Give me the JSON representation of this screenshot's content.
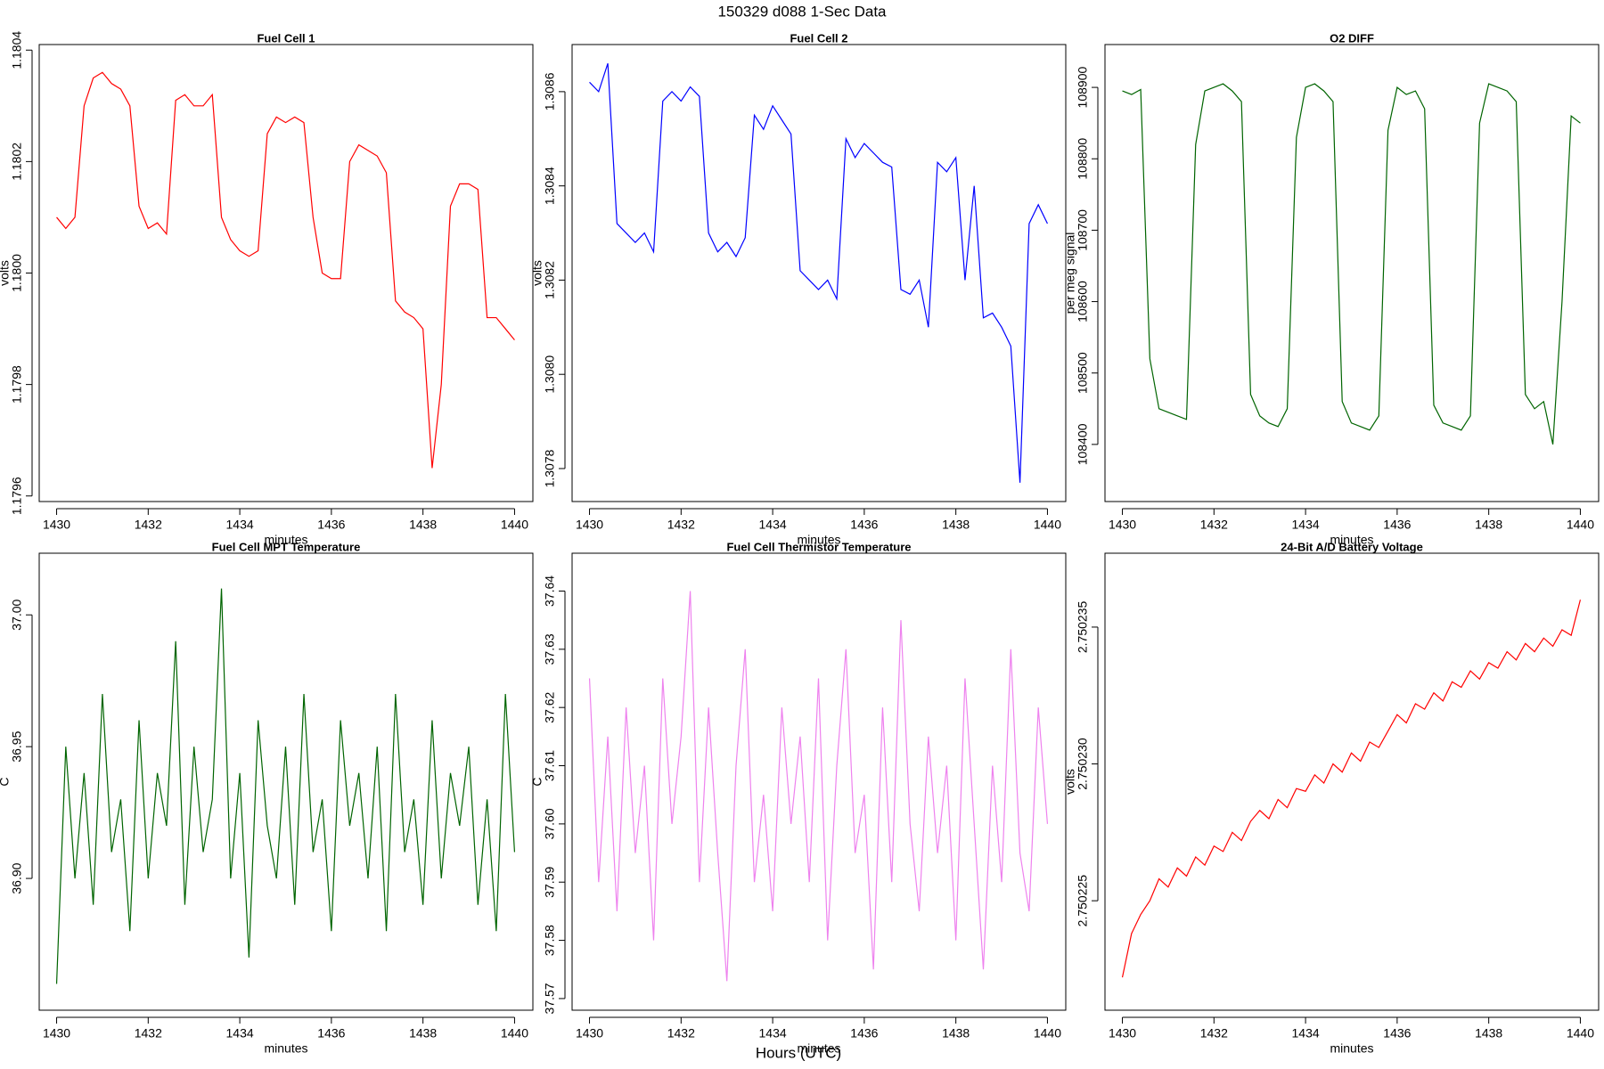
{
  "title": "150329   d088   1-Sec Data",
  "xlabel": "Hours (UTC)",
  "chart_data": [
    {
      "type": "line",
      "title": "Fuel Cell 1",
      "xlabel": "minutes",
      "ylabel": "volts",
      "color": "#ff0000",
      "x": [
        1430,
        1430.2,
        1430.4,
        1430.6,
        1430.8,
        1431,
        1431.2,
        1431.4,
        1431.6,
        1431.8,
        1432,
        1432.2,
        1432.4,
        1432.6,
        1432.8,
        1433,
        1433.2,
        1433.4,
        1433.6,
        1433.8,
        1434,
        1434.2,
        1434.4,
        1434.6,
        1434.8,
        1435,
        1435.2,
        1435.4,
        1435.6,
        1435.8,
        1436,
        1436.2,
        1436.4,
        1436.6,
        1436.8,
        1437,
        1437.2,
        1437.4,
        1437.6,
        1437.8,
        1438,
        1438.2,
        1438.4,
        1438.6,
        1438.8,
        1439,
        1439.2,
        1439.4,
        1439.6,
        1439.8,
        1440
      ],
      "values": [
        1.1801,
        1.18008,
        1.1801,
        1.1803,
        1.18035,
        1.18036,
        1.18034,
        1.18033,
        1.1803,
        1.18012,
        1.18008,
        1.18009,
        1.18007,
        1.18031,
        1.18032,
        1.1803,
        1.1803,
        1.18032,
        1.1801,
        1.18006,
        1.18004,
        1.18003,
        1.18004,
        1.18025,
        1.18028,
        1.18027,
        1.18028,
        1.18027,
        1.1801,
        1.18,
        1.17999,
        1.17999,
        1.1802,
        1.18023,
        1.18022,
        1.18021,
        1.18018,
        1.17995,
        1.17993,
        1.17992,
        1.1799,
        1.17965,
        1.1798,
        1.18012,
        1.18016,
        1.18016,
        1.18015,
        1.17992,
        1.17992,
        1.1799,
        1.17988
      ],
      "xlim": [
        1429.62,
        1440.4
      ],
      "xticks": [
        1430,
        1432,
        1434,
        1436,
        1438,
        1440
      ],
      "ylim": [
        1.17959,
        1.18041
      ],
      "yticks": [
        1.1796,
        1.1798,
        {
          "value": 1.18,
          "label": "1.1800"
        },
        1.1802,
        1.1804
      ]
    },
    {
      "type": "line",
      "title": "Fuel Cell 2",
      "xlabel": "minutes",
      "ylabel": "volts",
      "color": "#0000ff",
      "x": [
        1430,
        1430.2,
        1430.4,
        1430.6,
        1430.8,
        1431,
        1431.2,
        1431.4,
        1431.6,
        1431.8,
        1432,
        1432.2,
        1432.4,
        1432.6,
        1432.8,
        1433,
        1433.2,
        1433.4,
        1433.6,
        1433.8,
        1434,
        1434.2,
        1434.4,
        1434.6,
        1434.8,
        1435,
        1435.2,
        1435.4,
        1435.6,
        1435.8,
        1436,
        1436.2,
        1436.4,
        1436.6,
        1436.8,
        1437,
        1437.2,
        1437.4,
        1437.6,
        1437.8,
        1438,
        1438.2,
        1438.4,
        1438.6,
        1438.8,
        1439,
        1439.2,
        1439.4,
        1439.6,
        1439.8,
        1440
      ],
      "values": [
        1.30862,
        1.3086,
        1.30866,
        1.30832,
        1.3083,
        1.30828,
        1.3083,
        1.30826,
        1.30858,
        1.3086,
        1.30858,
        1.30861,
        1.30859,
        1.3083,
        1.30826,
        1.30828,
        1.30825,
        1.30829,
        1.30855,
        1.30852,
        1.30857,
        1.30854,
        1.30851,
        1.30822,
        1.3082,
        1.30818,
        1.3082,
        1.30816,
        1.3085,
        1.30846,
        1.30849,
        1.30847,
        1.30845,
        1.30844,
        1.30818,
        1.30817,
        1.3082,
        1.3081,
        1.30845,
        1.30843,
        1.30846,
        1.3082,
        1.3084,
        1.30812,
        1.30813,
        1.3081,
        1.30806,
        1.30777,
        1.30832,
        1.30836,
        1.30832
      ],
      "xlim": [
        1429.62,
        1440.4
      ],
      "xticks": [
        1430,
        1432,
        1434,
        1436,
        1438,
        1440
      ],
      "ylim": [
        1.30773,
        1.3087
      ],
      "yticks": [
        1.3078,
        {
          "value": 1.308,
          "label": "1.3080"
        },
        1.3082,
        1.3084,
        1.3086
      ]
    },
    {
      "type": "line",
      "title": "O2 DIFF",
      "xlabel": "minutes",
      "ylabel": "per meg signal",
      "color": "#006400",
      "x": [
        1430,
        1430.2,
        1430.4,
        1430.6,
        1430.8,
        1431,
        1431.2,
        1431.4,
        1431.6,
        1431.8,
        1432,
        1432.2,
        1432.4,
        1432.6,
        1432.8,
        1433,
        1433.2,
        1433.4,
        1433.6,
        1433.8,
        1434,
        1434.2,
        1434.4,
        1434.6,
        1434.8,
        1435,
        1435.2,
        1435.4,
        1435.6,
        1435.8,
        1436,
        1436.2,
        1436.4,
        1436.6,
        1436.8,
        1437,
        1437.2,
        1437.4,
        1437.6,
        1437.8,
        1438,
        1438.2,
        1438.4,
        1438.6,
        1438.8,
        1439,
        1439.2,
        1439.4,
        1439.6,
        1439.8,
        1440
      ],
      "values": [
        108895,
        108890,
        108897,
        108520,
        108450,
        108445,
        108440,
        108435,
        108820,
        108895,
        108900,
        108905,
        108895,
        108880,
        108470,
        108440,
        108430,
        108425,
        108450,
        108830,
        108900,
        108905,
        108895,
        108880,
        108460,
        108430,
        108425,
        108420,
        108440,
        108840,
        108900,
        108890,
        108895,
        108870,
        108455,
        108430,
        108425,
        108420,
        108440,
        108850,
        108905,
        108900,
        108895,
        108880,
        108470,
        108450,
        108460,
        108400,
        108600,
        108860,
        108850
      ],
      "xlim": [
        1429.62,
        1440.4
      ],
      "xticks": [
        1430,
        1432,
        1434,
        1436,
        1438,
        1440
      ],
      "ylim": [
        108320,
        108960
      ],
      "yticks": [
        108400,
        108500,
        108600,
        108700,
        108800,
        108900
      ]
    },
    {
      "type": "line",
      "title": "Fuel Cell MPT Temperature",
      "xlabel": "minutes",
      "ylabel": "C",
      "color": "#006400",
      "x": [
        1430,
        1430.2,
        1430.4,
        1430.6,
        1430.8,
        1431,
        1431.2,
        1431.4,
        1431.6,
        1431.8,
        1432,
        1432.2,
        1432.4,
        1432.6,
        1432.8,
        1433,
        1433.2,
        1433.4,
        1433.6,
        1433.8,
        1434,
        1434.2,
        1434.4,
        1434.6,
        1434.8,
        1435,
        1435.2,
        1435.4,
        1435.6,
        1435.8,
        1436,
        1436.2,
        1436.4,
        1436.6,
        1436.8,
        1437,
        1437.2,
        1437.4,
        1437.6,
        1437.8,
        1438,
        1438.2,
        1438.4,
        1438.6,
        1438.8,
        1439,
        1439.2,
        1439.4,
        1439.6,
        1439.8,
        1440
      ],
      "values": [
        36.86,
        36.95,
        36.9,
        36.94,
        36.89,
        36.97,
        36.91,
        36.93,
        36.88,
        36.96,
        36.9,
        36.94,
        36.92,
        36.99,
        36.89,
        36.95,
        36.91,
        36.93,
        37.01,
        36.9,
        36.94,
        36.87,
        36.96,
        36.92,
        36.9,
        36.95,
        36.89,
        36.97,
        36.91,
        36.93,
        36.88,
        36.96,
        36.92,
        36.94,
        36.9,
        36.95,
        36.88,
        36.97,
        36.91,
        36.93,
        36.89,
        36.96,
        36.9,
        36.94,
        36.92,
        36.95,
        36.89,
        36.93,
        36.88,
        36.97,
        36.91
      ],
      "xlim": [
        1429.62,
        1440.4
      ],
      "xticks": [
        1430,
        1432,
        1434,
        1436,
        1438,
        1440
      ],
      "ylim": [
        36.85,
        37.0234
      ],
      "yticks": [
        {
          "value": 36.9,
          "label": "36.90"
        },
        36.95,
        {
          "value": 37,
          "label": "37.00"
        }
      ]
    },
    {
      "type": "line",
      "title": "Fuel Cell Thermistor Temperature",
      "xlabel": "minutes",
      "ylabel": "C",
      "color": "#ee82ee",
      "x": [
        1430,
        1430.2,
        1430.4,
        1430.6,
        1430.8,
        1431,
        1431.2,
        1431.4,
        1431.6,
        1431.8,
        1432,
        1432.2,
        1432.4,
        1432.6,
        1432.8,
        1433,
        1433.2,
        1433.4,
        1433.6,
        1433.8,
        1434,
        1434.2,
        1434.4,
        1434.6,
        1434.8,
        1435,
        1435.2,
        1435.4,
        1435.6,
        1435.8,
        1436,
        1436.2,
        1436.4,
        1436.6,
        1436.8,
        1437,
        1437.2,
        1437.4,
        1437.6,
        1437.8,
        1438,
        1438.2,
        1438.4,
        1438.6,
        1438.8,
        1439,
        1439.2,
        1439.4,
        1439.6,
        1439.8,
        1440
      ],
      "values": [
        37.625,
        37.59,
        37.615,
        37.585,
        37.62,
        37.595,
        37.61,
        37.58,
        37.625,
        37.6,
        37.615,
        37.64,
        37.59,
        37.62,
        37.595,
        37.573,
        37.61,
        37.63,
        37.59,
        37.605,
        37.585,
        37.62,
        37.6,
        37.615,
        37.59,
        37.625,
        37.58,
        37.61,
        37.63,
        37.595,
        37.605,
        37.575,
        37.62,
        37.59,
        37.635,
        37.6,
        37.585,
        37.615,
        37.595,
        37.61,
        37.58,
        37.625,
        37.6,
        37.575,
        37.61,
        37.59,
        37.63,
        37.595,
        37.585,
        37.62,
        37.6
      ],
      "xlim": [
        1429.62,
        1440.4
      ],
      "xticks": [
        1430,
        1432,
        1434,
        1436,
        1438,
        1440
      ],
      "ylim": [
        37.568,
        37.6465
      ],
      "yticks": [
        37.57,
        37.58,
        37.59,
        {
          "value": 37.6,
          "label": "37.60"
        },
        37.61,
        37.62,
        37.63,
        37.64
      ]
    },
    {
      "type": "line",
      "title": "24-Bit A/D Battery Voltage",
      "xlabel": "minutes",
      "ylabel": "volts",
      "color": "#ff0000",
      "x": [
        1430,
        1430.2,
        1430.4,
        1430.6,
        1430.8,
        1431,
        1431.2,
        1431.4,
        1431.6,
        1431.8,
        1432,
        1432.2,
        1432.4,
        1432.6,
        1432.8,
        1433,
        1433.2,
        1433.4,
        1433.6,
        1433.8,
        1434,
        1434.2,
        1434.4,
        1434.6,
        1434.8,
        1435,
        1435.2,
        1435.4,
        1435.6,
        1435.8,
        1436,
        1436.2,
        1436.4,
        1436.6,
        1436.8,
        1437,
        1437.2,
        1437.4,
        1437.6,
        1437.8,
        1438,
        1438.2,
        1438.4,
        1438.6,
        1438.8,
        1439,
        1439.2,
        1439.4,
        1439.6,
        1439.8,
        1440
      ],
      "values": [
        2.7502222,
        2.7502238,
        2.7502245,
        2.750225,
        2.7502258,
        2.7502255,
        2.7502262,
        2.7502259,
        2.7502266,
        2.7502263,
        2.750227,
        2.7502268,
        2.7502275,
        2.7502272,
        2.7502279,
        2.7502283,
        2.750228,
        2.7502287,
        2.7502284,
        2.7502291,
        2.750229,
        2.7502296,
        2.7502293,
        2.75023,
        2.7502297,
        2.7502304,
        2.7502301,
        2.7502308,
        2.7502306,
        2.7502312,
        2.7502318,
        2.7502315,
        2.7502322,
        2.750232,
        2.7502326,
        2.7502323,
        2.750233,
        2.7502328,
        2.7502334,
        2.7502331,
        2.7502337,
        2.7502335,
        2.7502341,
        2.7502338,
        2.7502344,
        2.7502341,
        2.7502346,
        2.7502343,
        2.7502349,
        2.7502347,
        2.750236
      ],
      "xlim": [
        1429.62,
        1440.4
      ],
      "xticks": [
        1430,
        1432,
        1434,
        1436,
        1438,
        1440
      ],
      "ylim": [
        2.750221,
        2.7502377
      ],
      "yticks": [
        2.750225,
        {
          "value": 2.75023,
          "label": "2.750230"
        },
        2.750235
      ]
    }
  ]
}
